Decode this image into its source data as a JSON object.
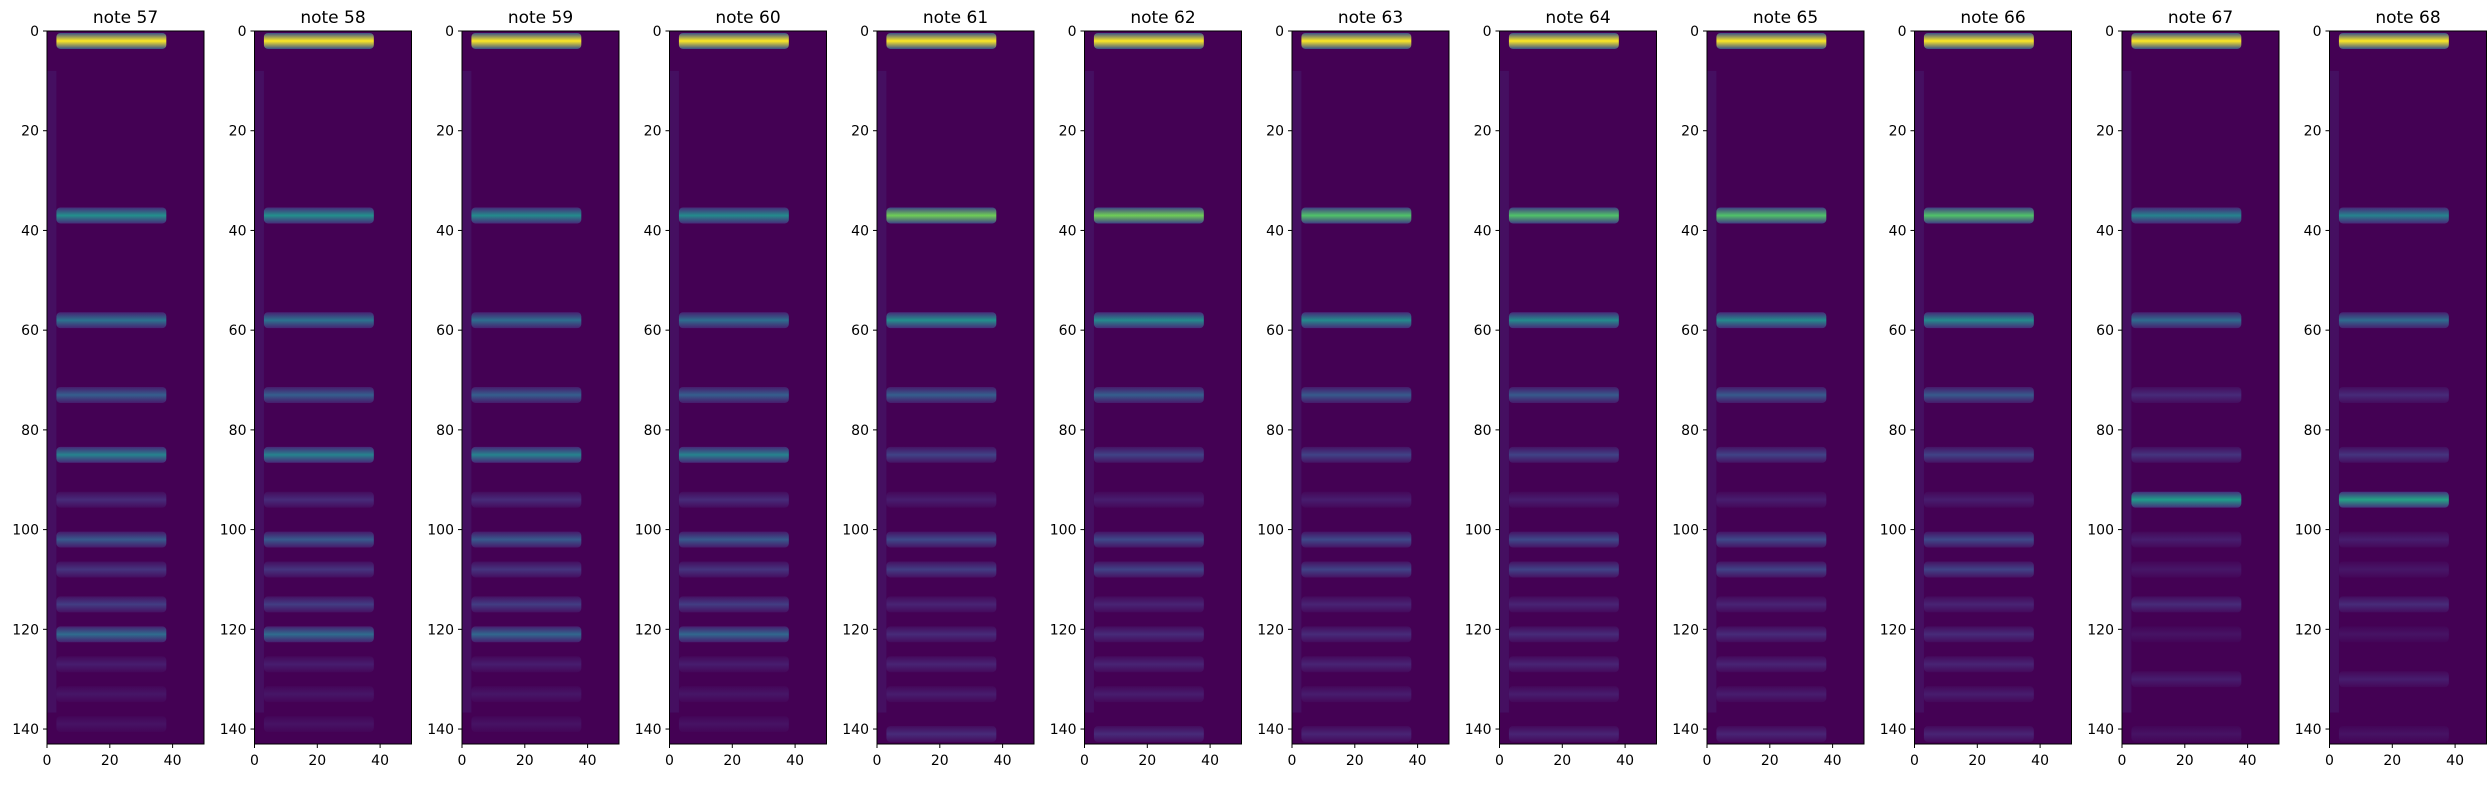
{
  "chart_data": {
    "type": "heatmap",
    "colormap": "viridis",
    "x_range": [
      0,
      50
    ],
    "y_range": [
      0,
      143
    ],
    "y_inverted": true,
    "x_ticks": [
      "0",
      "20",
      "40"
    ],
    "y_ticks": [
      "0",
      "20",
      "40",
      "60",
      "80",
      "100",
      "120",
      "140"
    ],
    "note_extent_x": [
      3,
      38
    ],
    "panels": [
      {
        "title": "note 57",
        "bands": [
          [
            2,
            1.0
          ],
          [
            37,
            0.5
          ],
          [
            58,
            0.38
          ],
          [
            73,
            0.3
          ],
          [
            85,
            0.45
          ],
          [
            94,
            0.12
          ],
          [
            102,
            0.28
          ],
          [
            108,
            0.15
          ],
          [
            115,
            0.18
          ],
          [
            121,
            0.35
          ],
          [
            127,
            0.08
          ],
          [
            133,
            0.06
          ],
          [
            139,
            0.05
          ]
        ]
      },
      {
        "title": "note 58",
        "bands": [
          [
            2,
            1.0
          ],
          [
            37,
            0.5
          ],
          [
            58,
            0.38
          ],
          [
            73,
            0.3
          ],
          [
            85,
            0.45
          ],
          [
            94,
            0.12
          ],
          [
            102,
            0.28
          ],
          [
            108,
            0.15
          ],
          [
            115,
            0.18
          ],
          [
            121,
            0.35
          ],
          [
            127,
            0.08
          ],
          [
            133,
            0.06
          ],
          [
            139,
            0.05
          ]
        ]
      },
      {
        "title": "note 59",
        "bands": [
          [
            2,
            1.0
          ],
          [
            37,
            0.48
          ],
          [
            58,
            0.36
          ],
          [
            73,
            0.3
          ],
          [
            85,
            0.45
          ],
          [
            94,
            0.12
          ],
          [
            102,
            0.28
          ],
          [
            108,
            0.15
          ],
          [
            115,
            0.18
          ],
          [
            121,
            0.33
          ],
          [
            127,
            0.08
          ],
          [
            133,
            0.06
          ],
          [
            139,
            0.05
          ]
        ]
      },
      {
        "title": "note 60",
        "bands": [
          [
            2,
            1.0
          ],
          [
            37,
            0.48
          ],
          [
            58,
            0.36
          ],
          [
            73,
            0.3
          ],
          [
            85,
            0.45
          ],
          [
            94,
            0.12
          ],
          [
            102,
            0.28
          ],
          [
            108,
            0.15
          ],
          [
            115,
            0.18
          ],
          [
            121,
            0.33
          ],
          [
            127,
            0.08
          ],
          [
            133,
            0.06
          ],
          [
            139,
            0.05
          ]
        ]
      },
      {
        "title": "note 61",
        "bands": [
          [
            2,
            1.0
          ],
          [
            37,
            0.78
          ],
          [
            58,
            0.5
          ],
          [
            73,
            0.3
          ],
          [
            85,
            0.2
          ],
          [
            94,
            0.08
          ],
          [
            102,
            0.22
          ],
          [
            108,
            0.18
          ],
          [
            115,
            0.1
          ],
          [
            121,
            0.12
          ],
          [
            127,
            0.1
          ],
          [
            133,
            0.08
          ],
          [
            141,
            0.12
          ]
        ]
      },
      {
        "title": "note 62",
        "bands": [
          [
            2,
            1.0
          ],
          [
            37,
            0.78
          ],
          [
            58,
            0.48
          ],
          [
            73,
            0.3
          ],
          [
            85,
            0.2
          ],
          [
            94,
            0.08
          ],
          [
            102,
            0.22
          ],
          [
            108,
            0.2
          ],
          [
            115,
            0.1
          ],
          [
            121,
            0.12
          ],
          [
            127,
            0.1
          ],
          [
            133,
            0.08
          ],
          [
            141,
            0.12
          ]
        ]
      },
      {
        "title": "note 63",
        "bands": [
          [
            2,
            1.0
          ],
          [
            37,
            0.72
          ],
          [
            58,
            0.48
          ],
          [
            73,
            0.28
          ],
          [
            85,
            0.2
          ],
          [
            94,
            0.08
          ],
          [
            102,
            0.22
          ],
          [
            108,
            0.2
          ],
          [
            115,
            0.1
          ],
          [
            121,
            0.12
          ],
          [
            127,
            0.1
          ],
          [
            133,
            0.08
          ],
          [
            141,
            0.1
          ]
        ]
      },
      {
        "title": "note 64",
        "bands": [
          [
            2,
            1.0
          ],
          [
            37,
            0.72
          ],
          [
            58,
            0.48
          ],
          [
            73,
            0.28
          ],
          [
            85,
            0.2
          ],
          [
            94,
            0.08
          ],
          [
            102,
            0.22
          ],
          [
            108,
            0.2
          ],
          [
            115,
            0.1
          ],
          [
            121,
            0.12
          ],
          [
            127,
            0.1
          ],
          [
            133,
            0.08
          ],
          [
            141,
            0.1
          ]
        ]
      },
      {
        "title": "note 65",
        "bands": [
          [
            2,
            1.0
          ],
          [
            37,
            0.72
          ],
          [
            58,
            0.48
          ],
          [
            73,
            0.28
          ],
          [
            85,
            0.2
          ],
          [
            94,
            0.08
          ],
          [
            102,
            0.22
          ],
          [
            108,
            0.2
          ],
          [
            115,
            0.1
          ],
          [
            121,
            0.12
          ],
          [
            127,
            0.1
          ],
          [
            133,
            0.08
          ],
          [
            141,
            0.1
          ]
        ]
      },
      {
        "title": "note 66",
        "bands": [
          [
            2,
            1.0
          ],
          [
            37,
            0.72
          ],
          [
            58,
            0.48
          ],
          [
            73,
            0.28
          ],
          [
            85,
            0.2
          ],
          [
            94,
            0.08
          ],
          [
            102,
            0.22
          ],
          [
            108,
            0.2
          ],
          [
            115,
            0.1
          ],
          [
            121,
            0.12
          ],
          [
            127,
            0.1
          ],
          [
            133,
            0.08
          ],
          [
            141,
            0.1
          ]
        ]
      },
      {
        "title": "note 67",
        "bands": [
          [
            2,
            1.0
          ],
          [
            37,
            0.45
          ],
          [
            58,
            0.35
          ],
          [
            73,
            0.12
          ],
          [
            85,
            0.15
          ],
          [
            94,
            0.55
          ],
          [
            102,
            0.08
          ],
          [
            108,
            0.06
          ],
          [
            115,
            0.12
          ],
          [
            121,
            0.05
          ],
          [
            130,
            0.08
          ],
          [
            141,
            0.05
          ]
        ]
      },
      {
        "title": "note 68",
        "bands": [
          [
            2,
            1.0
          ],
          [
            37,
            0.45
          ],
          [
            58,
            0.35
          ],
          [
            73,
            0.12
          ],
          [
            85,
            0.15
          ],
          [
            94,
            0.58
          ],
          [
            102,
            0.08
          ],
          [
            108,
            0.06
          ],
          [
            115,
            0.12
          ],
          [
            121,
            0.05
          ],
          [
            130,
            0.08
          ],
          [
            141,
            0.05
          ]
        ]
      }
    ]
  }
}
